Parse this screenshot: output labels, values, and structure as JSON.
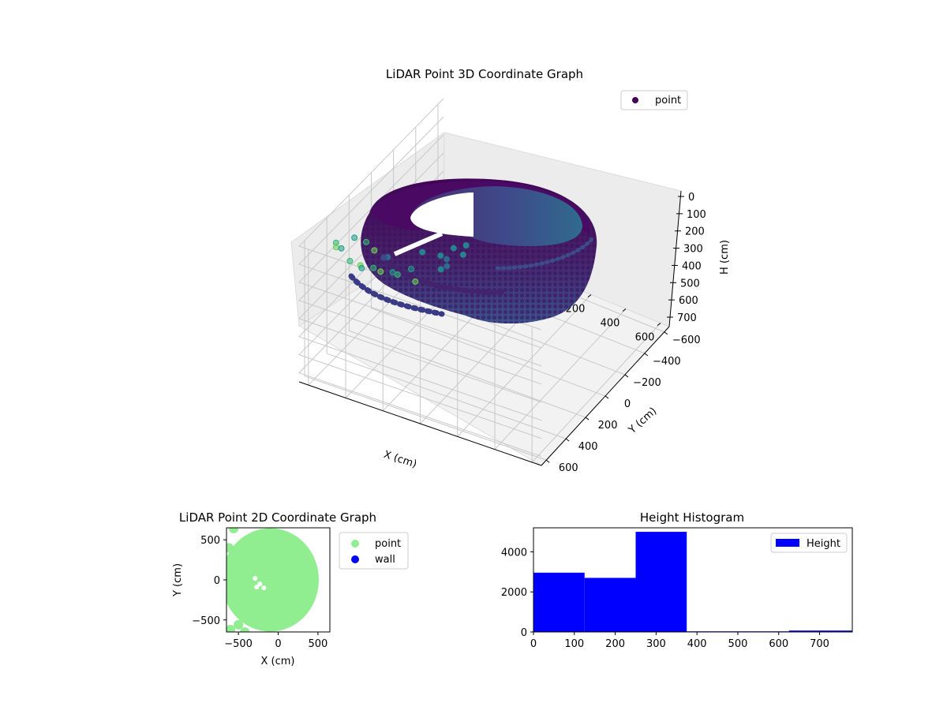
{
  "chart_data": [
    {
      "type": "scatter",
      "projection": "3d",
      "title": "LiDAR Point 3D Coordinate Graph",
      "xlabel": "X (cm)",
      "ylabel": "Y (cm)",
      "zlabel": "H (cm)",
      "xlim": [
        -650,
        650
      ],
      "ylim": [
        -650,
        650
      ],
      "zlim": [
        750,
        0
      ],
      "z_inverted": true,
      "xticks": [
        -600,
        -400,
        -200,
        0,
        200,
        400,
        600
      ],
      "yticks": [
        -600,
        -400,
        -200,
        0,
        200,
        400,
        600
      ],
      "zticks": [
        0,
        100,
        200,
        300,
        400,
        500,
        600,
        700
      ],
      "colormap": "viridis",
      "grid": true,
      "legend": {
        "position": "top-right",
        "entries": [
          {
            "name": "point",
            "color": "#440154"
          }
        ]
      },
      "series": [
        {
          "name": "point",
          "shape": "circular-wall",
          "outer_radius_cm": 600,
          "inner_radius_cm": 300,
          "height_range_cm": [
            0,
            360
          ],
          "opening_angle_deg": 215,
          "outliers": [
            {
              "x": -560,
              "y": -600,
              "h": 760
            },
            {
              "x": -520,
              "y": -650,
              "h": 760
            },
            {
              "x": -480,
              "y": -560,
              "h": 740
            },
            {
              "x": -540,
              "y": -450,
              "h": 700
            },
            {
              "x": -600,
              "y": -380,
              "h": 660
            },
            {
              "x": -470,
              "y": -340,
              "h": 680
            },
            {
              "x": -400,
              "y": -280,
              "h": 560
            },
            {
              "x": -350,
              "y": -200,
              "h": 530
            },
            {
              "x": -620,
              "y": -100,
              "h": 520
            },
            {
              "x": -520,
              "y": 100,
              "h": 360
            },
            {
              "x": -600,
              "y": 400,
              "h": 120
            },
            {
              "x": -540,
              "y": 500,
              "h": 60
            },
            {
              "x": -500,
              "y": 520,
              "h": 40
            },
            {
              "x": -430,
              "y": 560,
              "h": 60
            },
            {
              "x": -350,
              "y": 600,
              "h": 30
            },
            {
              "x": -320,
              "y": 640,
              "h": 10
            },
            {
              "x": -280,
              "y": 600,
              "h": 20
            },
            {
              "x": -230,
              "y": 620,
              "h": 10
            },
            {
              "x": -200,
              "y": 560,
              "h": 40
            },
            {
              "x": -150,
              "y": 600,
              "h": 10
            },
            {
              "x": -100,
              "y": 520,
              "h": 80
            },
            {
              "x": -560,
              "y": 300,
              "h": 140
            },
            {
              "x": -460,
              "y": 360,
              "h": 90
            },
            {
              "x": -380,
              "y": 420,
              "h": 70
            },
            {
              "x": -250,
              "y": 300,
              "h": 200
            }
          ]
        }
      ]
    },
    {
      "type": "scatter",
      "title": "LiDAR Point 2D Coordinate Graph",
      "xlabel": "X (cm)",
      "ylabel": "Y (cm)",
      "xlim": [
        -650,
        650
      ],
      "ylim": [
        -650,
        650
      ],
      "xticks": [
        -500,
        0,
        500
      ],
      "yticks": [
        -500,
        0,
        500
      ],
      "legend": {
        "position": "outside-right"
      },
      "series": [
        {
          "name": "point",
          "color": "#90ee90",
          "center": [
            -100,
            0
          ],
          "radius": 650
        },
        {
          "name": "wall",
          "color": "#0000ff",
          "points": []
        }
      ]
    },
    {
      "type": "bar",
      "subtype": "histogram",
      "title": "Height Histogram",
      "xlim": [
        0,
        780
      ],
      "ylim": [
        0,
        5200
      ],
      "xticks": [
        0,
        100,
        200,
        300,
        400,
        500,
        600,
        700
      ],
      "yticks": [
        0,
        2000,
        4000
      ],
      "bin_edges": [
        0,
        125,
        250,
        375,
        500,
        625,
        780
      ],
      "values": [
        2960,
        2700,
        5000,
        30,
        30,
        70
      ],
      "series": [
        {
          "name": "Height",
          "color": "#0000ff"
        }
      ],
      "legend": {
        "position": "top-right"
      }
    }
  ]
}
